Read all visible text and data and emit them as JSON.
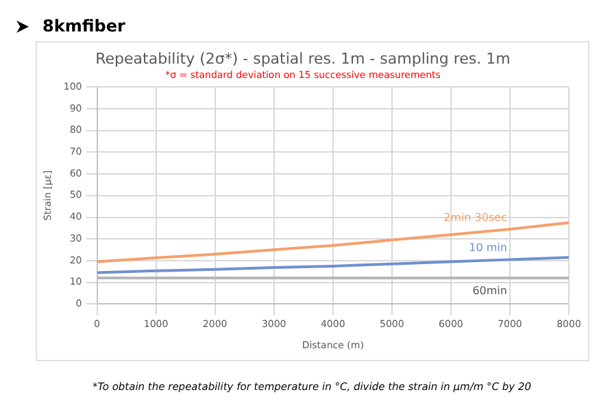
{
  "chart_data": {
    "type": "line",
    "title": "Repeatability (2σ*) - spatial res. 1m - sampling res. 1m",
    "subtitle": "*σ = standard deviation on 15 successive measurements",
    "xlabel": "Distance (m)",
    "ylabel": "Strain [με]",
    "annotations": [
      "8kmfiber",
      "*To obtain the repeatability for temperature in °C, divide the strain in µm/m °C by 20"
    ],
    "x": [
      0,
      1000,
      2000,
      3000,
      4000,
      5000,
      6000,
      7000,
      8000
    ],
    "series": [
      {
        "name": "2min 30sec",
        "color": "#f4a06a",
        "values": [
          19.5,
          21.3,
          23,
          25,
          27,
          29.5,
          32,
          34.5,
          37.5
        ]
      },
      {
        "name": "10 min",
        "color": "#6f8fcf",
        "values": [
          14.5,
          15.3,
          16,
          16.8,
          17.5,
          18.5,
          19.5,
          20.5,
          21.5
        ]
      },
      {
        "name": "60min",
        "color": "#b4b4b4",
        "values": [
          12,
          12,
          12,
          12,
          12,
          12,
          12,
          12,
          12
        ]
      }
    ],
    "xlim": [
      0,
      8000
    ],
    "xticks": [
      0,
      1000,
      2000,
      3000,
      4000,
      5000,
      6000,
      7000,
      8000
    ],
    "ylim": [
      0,
      100
    ],
    "yticks": [
      0,
      10,
      20,
      30,
      40,
      50,
      60,
      70,
      80,
      90,
      100
    ],
    "grid": true,
    "legend": false,
    "marker": "none",
    "line_style": "solid"
  }
}
